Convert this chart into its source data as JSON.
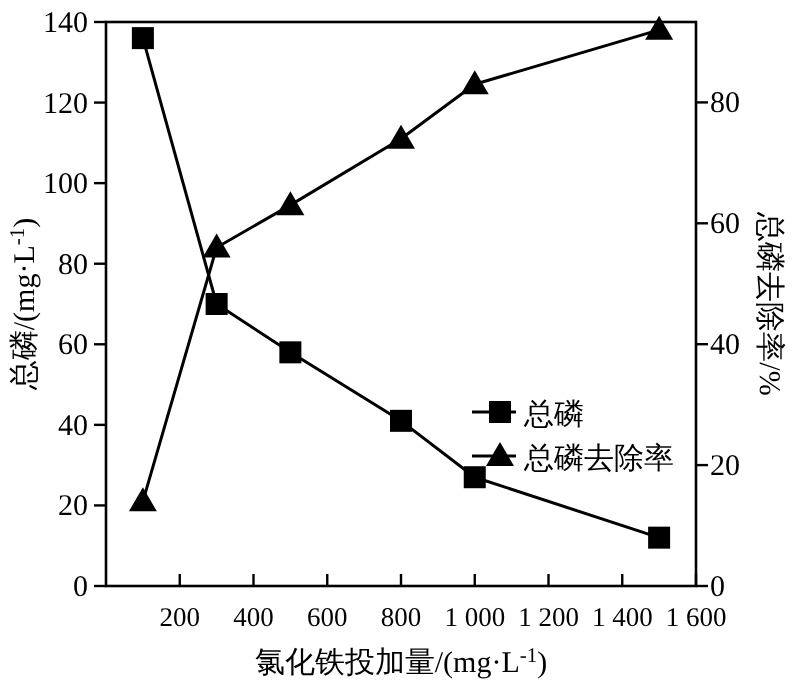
{
  "chart_data": {
    "type": "line",
    "xlabel": "氯化铁投加量/(mg·L$^{-1}$)",
    "ylabel": "总磷/(mg·L$^{-1}$)",
    "y2label": "总磷去除率/%",
    "x": [
      100,
      300,
      500,
      800,
      1000,
      1500
    ],
    "xlim": [
      0,
      1600
    ],
    "xticks": [
      200,
      400,
      600,
      800,
      {
        "value": 1000,
        "label": "1 000"
      },
      {
        "value": 1200,
        "label": "1 200"
      },
      {
        "value": 1400,
        "label": "1 400"
      },
      {
        "value": 1600,
        "label": "1 600"
      }
    ],
    "ylim": [
      0,
      140
    ],
    "yticks": [
      0,
      20,
      40,
      60,
      80,
      100,
      120,
      140
    ],
    "y2lim": [
      0,
      93.3
    ],
    "y2ticks": [
      0,
      20,
      40,
      60,
      80
    ],
    "legend": "right",
    "line_style": "solid",
    "series": [
      {
        "name": "总磷",
        "color": "#000000",
        "marker": "square",
        "values": [
          136,
          70,
          58,
          41,
          27,
          12
        ]
      },
      {
        "name": "总磷去除率",
        "color": "#000000",
        "marker": "triangle",
        "axis": "y2",
        "values": [
          14,
          56,
          63,
          74,
          83,
          92
        ]
      }
    ]
  }
}
